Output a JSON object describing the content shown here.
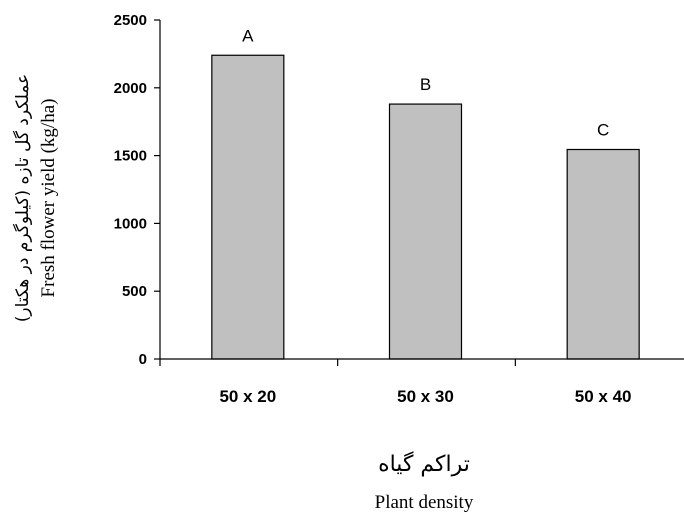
{
  "chart_data": {
    "type": "bar",
    "categories": [
      "50 x 20",
      "50 x 30",
      "50 x 40"
    ],
    "values": [
      2240,
      1880,
      1545
    ],
    "data_labels": [
      "A",
      "B",
      "C"
    ],
    "ylim": [
      0,
      2500
    ],
    "yticks": [
      "0",
      "500",
      "1000",
      "1500",
      "2000",
      "2500"
    ],
    "ytick_values": [
      0,
      500,
      1000,
      1500,
      2000,
      2500
    ],
    "ylabel": "Fresh flower yield (kg/ha)",
    "ylabel_fa": "عملکرد گل تازه (کیلوگرم در هکتار)",
    "xlabel": "Plant density",
    "xlabel_fa": "تراکم گیاه",
    "grid": false,
    "bar_color": "#c0c0c0"
  }
}
